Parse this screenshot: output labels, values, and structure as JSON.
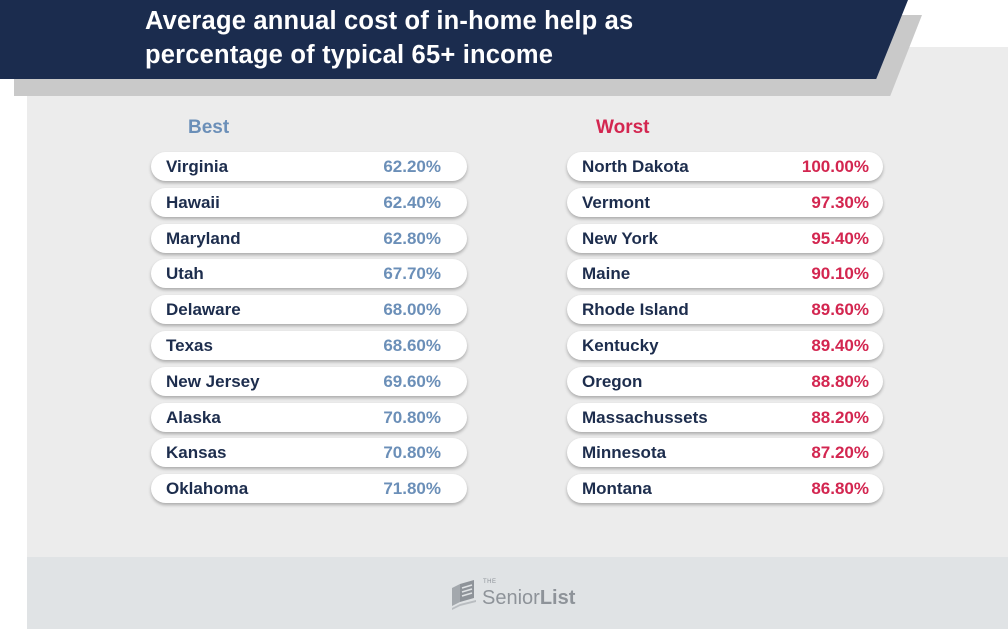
{
  "title_line1": "Average annual cost of in-home help as",
  "title_line2": "percentage of typical 65+ income",
  "best_label": "Best",
  "worst_label": "Worst",
  "colors": {
    "header": "#1b2c4e",
    "best": "#6b8fb8",
    "worst": "#d32650",
    "text": "#1d2d4d"
  },
  "chart_data": {
    "type": "table",
    "title": "Average annual cost of in-home help as percentage of typical 65+ income",
    "groups": [
      {
        "name": "Best",
        "rows": [
          {
            "state": "Virginia",
            "value": "62.20%"
          },
          {
            "state": "Hawaii",
            "value": "62.40%"
          },
          {
            "state": "Maryland",
            "value": "62.80%"
          },
          {
            "state": "Utah",
            "value": "67.70%"
          },
          {
            "state": "Delaware",
            "value": "68.00%"
          },
          {
            "state": "Texas",
            "value": "68.60%"
          },
          {
            "state": "New Jersey",
            "value": "69.60%"
          },
          {
            "state": "Alaska",
            "value": "70.80%"
          },
          {
            "state": "Kansas",
            "value": "70.80%"
          },
          {
            "state": "Oklahoma",
            "value": "71.80%"
          }
        ]
      },
      {
        "name": "Worst",
        "rows": [
          {
            "state": "North Dakota",
            "value": "100.00%"
          },
          {
            "state": "Vermont",
            "value": "97.30%"
          },
          {
            "state": "New York",
            "value": "95.40%"
          },
          {
            "state": "Maine",
            "value": "90.10%"
          },
          {
            "state": "Rhode Island",
            "value": "89.60%"
          },
          {
            "state": "Kentucky",
            "value": "89.40%"
          },
          {
            "state": "Oregon",
            "value": "88.80%"
          },
          {
            "state": "Massachussets",
            "value": "88.20%"
          },
          {
            "state": "Minnesota",
            "value": "87.20%"
          },
          {
            "state": "Montana",
            "value": "86.80%"
          }
        ]
      }
    ]
  },
  "logo": {
    "the": "THE",
    "part1": "Senior",
    "part2": "List",
    "icon": "book-icon"
  }
}
